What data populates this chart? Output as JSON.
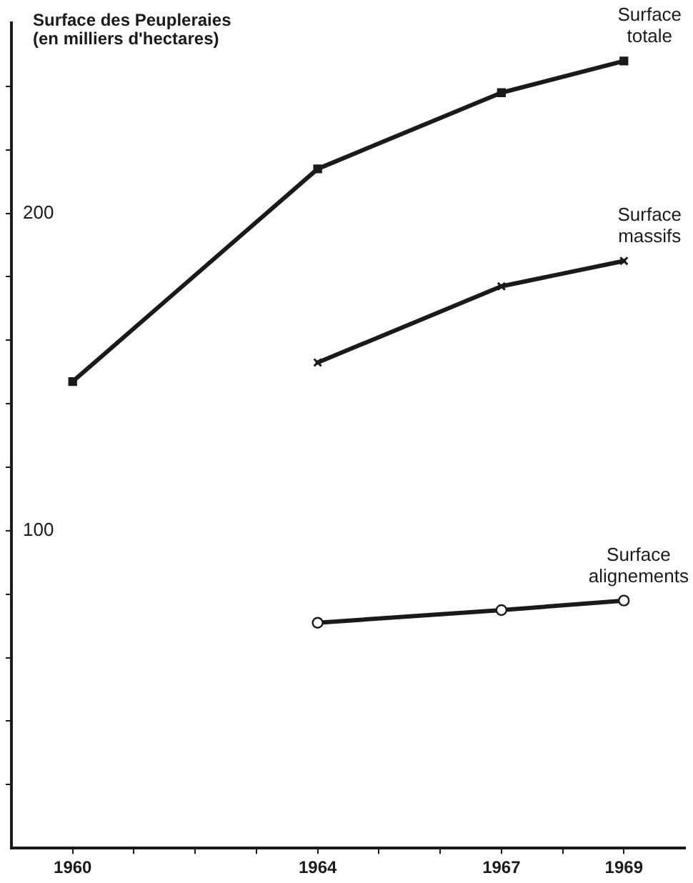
{
  "chart_data": {
    "type": "line",
    "ylabel": "Surface des Peupleraies\n(en milliers d'hectares)",
    "x": [
      1960,
      1964,
      1967,
      1969
    ],
    "series": [
      {
        "name": "Surface totale",
        "color": "#1a1a1a",
        "marker": "square",
        "values": [
          147,
          214,
          238,
          248
        ]
      },
      {
        "name": "Surface massifs",
        "color": "#1a1a1a",
        "marker": "cross",
        "values": [
          null,
          153,
          177,
          185
        ]
      },
      {
        "name": "Surface alignements",
        "color": "#1a1a1a",
        "marker": "circle",
        "values": [
          null,
          71,
          75,
          78
        ]
      }
    ],
    "xlim": [
      1959,
      1970
    ],
    "xticks": [
      1960,
      {
        "value": 1961,
        "label": null
      },
      {
        "value": 1962,
        "label": null
      },
      {
        "value": 1963,
        "label": null
      },
      1964,
      {
        "value": 1965,
        "label": null
      },
      {
        "value": 1966,
        "label": null
      },
      1967,
      {
        "value": 1968,
        "label": null
      },
      1969
    ],
    "ylim": [
      0,
      260
    ],
    "yticks": [
      {
        "value": 20,
        "label": null
      },
      {
        "value": 40,
        "label": null
      },
      {
        "value": 60,
        "label": null
      },
      {
        "value": 80,
        "label": null
      },
      100,
      {
        "value": 120,
        "label": null
      },
      {
        "value": 140,
        "label": null
      },
      {
        "value": 160,
        "label": null
      },
      {
        "value": 180,
        "label": null
      },
      200,
      {
        "value": 220,
        "label": null
      },
      {
        "value": 240,
        "label": null
      }
    ],
    "grid": false,
    "legend": false,
    "line_style": "solid"
  }
}
